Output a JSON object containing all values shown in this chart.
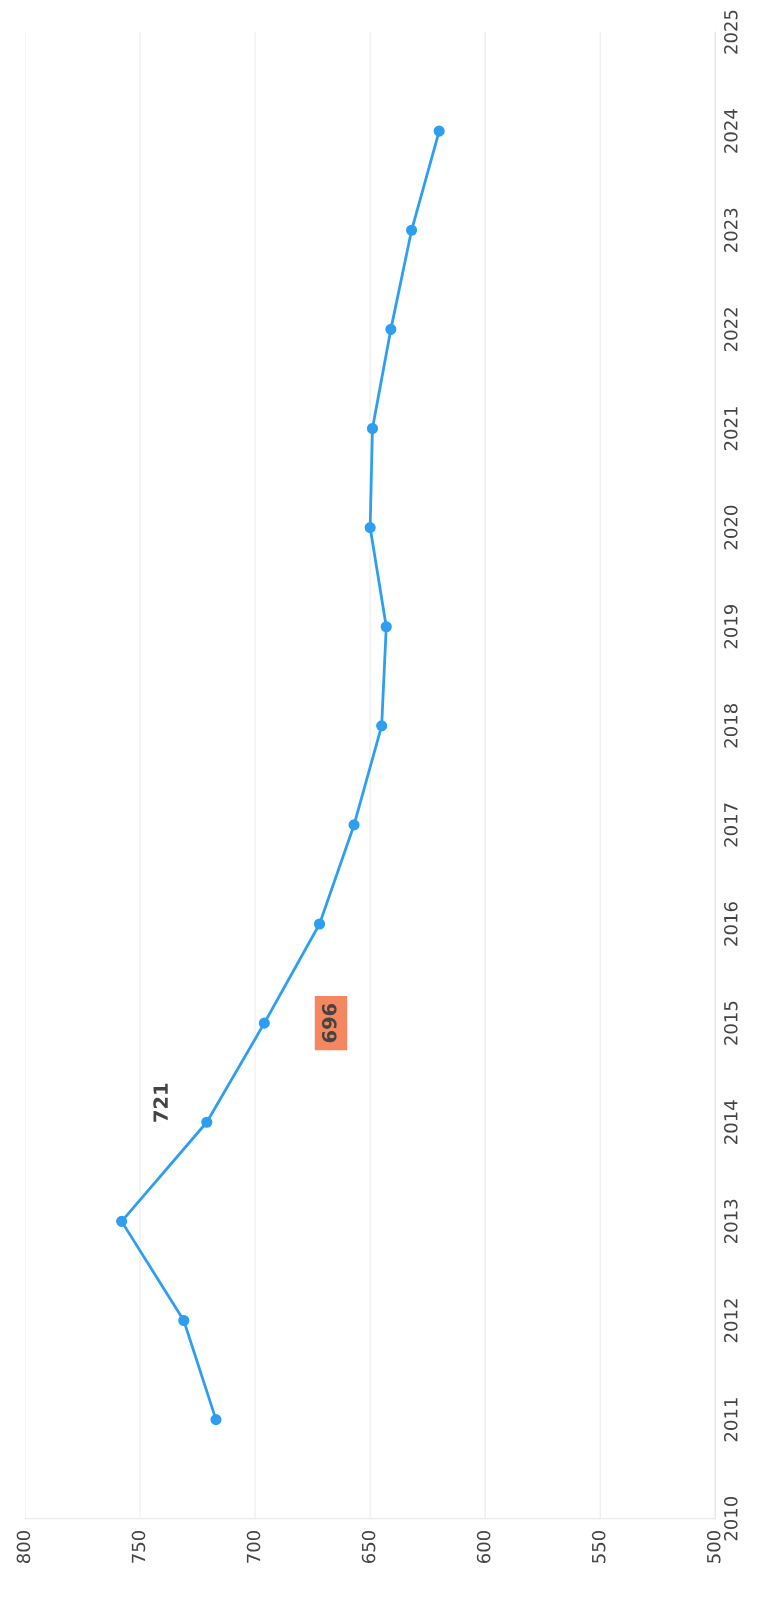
{
  "chart_data": {
    "type": "line",
    "orientation": "horizontal",
    "x": [
      2011,
      2012,
      2013,
      2014,
      2015,
      2016,
      2017,
      2018,
      2019,
      2020,
      2021,
      2022,
      2023,
      2024
    ],
    "values": [
      717,
      731,
      758,
      721,
      696,
      672,
      657,
      645,
      643,
      650,
      649,
      641,
      632,
      620
    ],
    "value_labels": [
      null,
      null,
      null,
      "721",
      "696",
      null,
      null,
      null,
      null,
      null,
      null,
      null,
      null,
      null
    ],
    "color": "#2e9ef0",
    "marker": "circle",
    "line_style": "solid",
    "xlim": [
      800,
      500
    ],
    "xticks": [
      800,
      750,
      700,
      650,
      600,
      550,
      500
    ],
    "ylim": [
      2010,
      2025
    ],
    "yticks": [
      2010,
      2011,
      2012,
      2013,
      2014,
      2015,
      2016,
      2017,
      2018,
      2019,
      2020,
      2021,
      2022,
      2023,
      2024,
      2025
    ],
    "grid": "x"
  }
}
